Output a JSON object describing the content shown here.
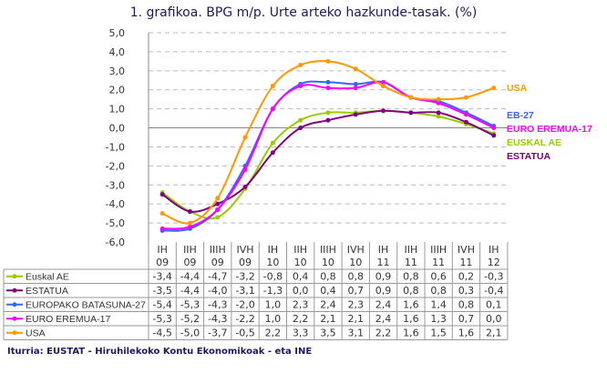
{
  "chart_data": {
    "type": "line",
    "title": "1. grafikoa. BPG m/p. Urte arteko hazkunde-tasak. (%)",
    "categories": [
      [
        "IH",
        "09"
      ],
      [
        "IIH",
        "09"
      ],
      [
        "IIIH",
        "09"
      ],
      [
        "IVH",
        "09"
      ],
      [
        "IH",
        "10"
      ],
      [
        "IIH",
        "10"
      ],
      [
        "IIIH",
        "10"
      ],
      [
        "IVH",
        "10"
      ],
      [
        "IH",
        "11"
      ],
      [
        "IIH",
        "11"
      ],
      [
        "IIIH",
        "11"
      ],
      [
        "IVH",
        "11"
      ],
      [
        "IH",
        "12"
      ]
    ],
    "ylim": [
      -6,
      5
    ],
    "yticks": [
      "5,0",
      "4,0",
      "3,0",
      "2,0",
      "1,0",
      "0,0",
      "-1,0",
      "-2,0",
      "-3,0",
      "-4,0",
      "-5,0",
      "-6,0"
    ],
    "grid": true,
    "series": [
      {
        "name": "Euskal AE",
        "label": "EUSKAL AE",
        "color": "#99cc00",
        "values": [
          -3.4,
          -4.4,
          -4.7,
          -3.2,
          -0.8,
          0.4,
          0.8,
          0.8,
          0.9,
          0.8,
          0.6,
          0.2,
          -0.3
        ]
      },
      {
        "name": "ESTATUA",
        "label": "ESTATUA",
        "color": "#800080",
        "values": [
          -3.5,
          -4.4,
          -4.0,
          -3.1,
          -1.3,
          0.0,
          0.4,
          0.7,
          0.9,
          0.8,
          0.8,
          0.3,
          -0.4
        ]
      },
      {
        "name": "EUROPAKO BATASUNA-27",
        "label": "EB-27",
        "color": "#3366ff",
        "values": [
          -5.4,
          -5.3,
          -4.3,
          -2.0,
          1.0,
          2.3,
          2.4,
          2.3,
          2.4,
          1.6,
          1.4,
          0.8,
          0.1
        ]
      },
      {
        "name": "EURO EREMUA-17",
        "label": "EURO EREMUA-17",
        "color": "#ff00ff",
        "values": [
          -5.3,
          -5.2,
          -4.3,
          -2.2,
          1.0,
          2.2,
          2.1,
          2.1,
          2.4,
          1.6,
          1.3,
          0.7,
          0.0
        ]
      },
      {
        "name": "USA",
        "label": "USA",
        "color": "#ff9900",
        "values": [
          -4.5,
          -5.0,
          -3.7,
          -0.5,
          2.2,
          3.3,
          3.5,
          3.1,
          2.2,
          1.6,
          1.5,
          1.6,
          2.1
        ]
      }
    ],
    "source": "Iturria: EUSTAT - Hiruhilekoko Kontu Ekonomikoak - eta INE"
  }
}
